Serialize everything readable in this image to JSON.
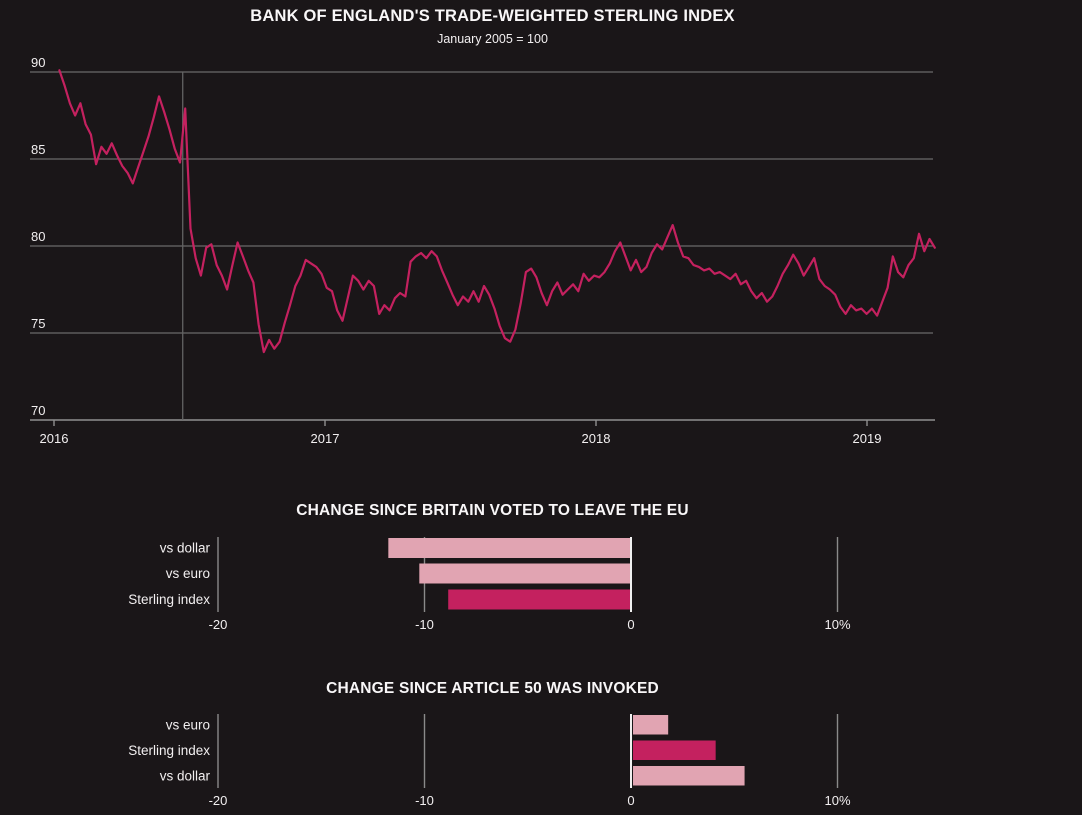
{
  "page": {
    "background": "#1a1618",
    "text_color": "#f2eff0"
  },
  "colors": {
    "sterling_line": "#c4215f",
    "dark_pink_bar": "#c4215f",
    "light_pink_bar": "#e1a4b2",
    "gridline": "#7e7e7e",
    "axis_baseline": "#8f8f8f",
    "event_line": "#636363",
    "bar_ref_line": "#8a8a8a",
    "zero_line": "#f0f0f0"
  },
  "chart_data": [
    {
      "type": "line",
      "title": "BANK OF ENGLAND'S TRADE-WEIGHTED STERLING INDEX",
      "subtitle": "January 2005 = 100",
      "series_name": "Sterling index",
      "ylim": [
        70,
        90.5
      ],
      "y_ticks": [
        90,
        85,
        80,
        75,
        70
      ],
      "x_ticks": [
        2016,
        2017,
        2018,
        2019
      ],
      "x_tick_labels": [
        "2016",
        "2017",
        "2018",
        "2019"
      ],
      "x_start_year": 2016.02,
      "x_end_year": 2019.25,
      "event_line_year": 2016.475,
      "event_line_meaning": "EU referendum vote",
      "grid": true,
      "values": [
        90.1,
        89.2,
        88.2,
        87.5,
        88.2,
        87.0,
        86.4,
        84.7,
        85.7,
        85.3,
        85.9,
        85.2,
        84.6,
        84.2,
        83.6,
        84.5,
        85.4,
        86.3,
        87.4,
        88.6,
        87.7,
        86.7,
        85.6,
        84.8,
        87.9,
        81.0,
        79.3,
        78.3,
        79.9,
        80.1,
        78.9,
        78.3,
        77.5,
        78.9,
        80.2,
        79.4,
        78.6,
        77.9,
        75.5,
        73.9,
        74.6,
        74.1,
        74.5,
        75.6,
        76.6,
        77.7,
        78.3,
        79.2,
        79.0,
        78.8,
        78.4,
        77.6,
        77.4,
        76.3,
        75.7,
        77.0,
        78.3,
        78.0,
        77.5,
        78.0,
        77.7,
        76.1,
        76.6,
        76.3,
        77.0,
        77.3,
        77.1,
        79.1,
        79.4,
        79.6,
        79.3,
        79.7,
        79.4,
        78.6,
        77.9,
        77.2,
        76.6,
        77.1,
        76.8,
        77.4,
        76.8,
        77.7,
        77.2,
        76.4,
        75.4,
        74.7,
        74.5,
        75.2,
        76.7,
        78.5,
        78.7,
        78.2,
        77.3,
        76.6,
        77.4,
        77.9,
        77.2,
        77.5,
        77.8,
        77.4,
        78.4,
        78.0,
        78.3,
        78.2,
        78.5,
        79.0,
        79.7,
        80.2,
        79.4,
        78.6,
        79.2,
        78.5,
        78.8,
        79.6,
        80.1,
        79.8,
        80.5,
        81.2,
        80.2,
        79.4,
        79.3,
        78.9,
        78.8,
        78.6,
        78.7,
        78.4,
        78.5,
        78.3,
        78.1,
        78.4,
        77.8,
        78.0,
        77.4,
        77.0,
        77.3,
        76.8,
        77.1,
        77.7,
        78.4,
        78.9,
        79.5,
        79.0,
        78.3,
        78.8,
        79.3,
        78.1,
        77.7,
        77.5,
        77.2,
        76.5,
        76.1,
        76.6,
        76.3,
        76.4,
        76.1,
        76.4,
        76.0,
        76.8,
        77.6,
        79.4,
        78.5,
        78.2,
        78.9,
        79.3,
        80.7,
        79.7,
        80.4,
        79.9
      ]
    },
    {
      "type": "bar",
      "title": "CHANGE SINCE BRITAIN VOTED TO LEAVE THE EU",
      "orientation": "horizontal",
      "categories": [
        "vs dollar",
        "vs euro",
        "Sterling index"
      ],
      "values": [
        -11.8,
        -10.3,
        -8.9
      ],
      "bar_styles": [
        "light",
        "light",
        "dark"
      ],
      "xlim": [
        -25,
        12
      ],
      "x_ticks": [
        -20,
        -10,
        0,
        10
      ],
      "x_tick_labels": [
        "-20",
        "-10",
        "0",
        "10%"
      ],
      "grid": true,
      "legend": "none"
    },
    {
      "type": "bar",
      "title": "CHANGE SINCE ARTICLE 50 WAS INVOKED",
      "orientation": "horizontal",
      "categories": [
        "vs euro",
        "Sterling index",
        "vs dollar"
      ],
      "values": [
        1.8,
        4.1,
        5.5
      ],
      "bar_styles": [
        "light",
        "dark",
        "light"
      ],
      "xlim": [
        -25,
        12
      ],
      "x_ticks": [
        -20,
        -10,
        0,
        10
      ],
      "x_tick_labels": [
        "-20",
        "-10",
        "0",
        "10%"
      ],
      "grid": true,
      "legend": "none"
    }
  ]
}
